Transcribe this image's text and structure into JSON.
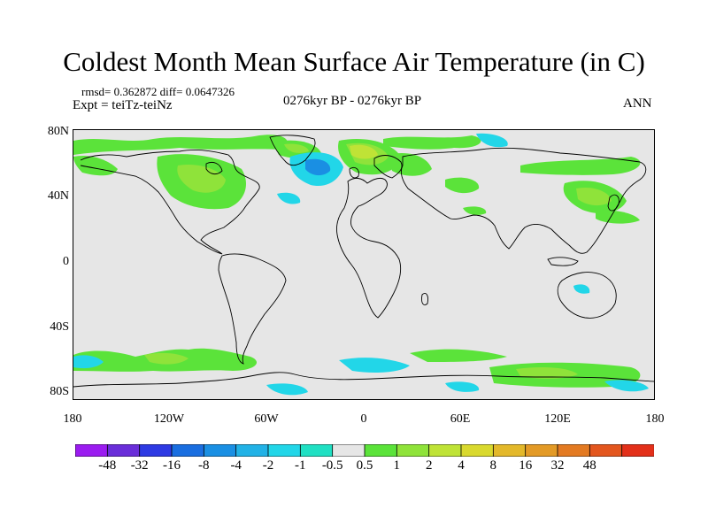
{
  "title": "Coldest Month Mean Surface Air Temperature (in C)",
  "stats": "rmsd= 0.362872 diff= 0.0647326",
  "experiment": "Expt = teiTz-teiNz",
  "period": "0276kyr BP - 0276kyr BP",
  "season": "ANN",
  "map": {
    "projection": "cylindrical equidistant",
    "lat_labels": [
      "80N",
      "40N",
      "0",
      "40S",
      "80S"
    ],
    "lon_labels": [
      "180",
      "120W",
      "60W",
      "0",
      "60E",
      "120E",
      "180"
    ],
    "background_color": "#e6e6e6",
    "coastline_color": "#000000"
  },
  "colorbar": {
    "colors": [
      "#9b1cf0",
      "#6a2ed9",
      "#2e3ae3",
      "#1a6ee0",
      "#1a8fe3",
      "#22b2e6",
      "#22d6e8",
      "#20e0c3",
      "#e6e6e6",
      "#5be33a",
      "#8fe33a",
      "#bfe336",
      "#d9d92e",
      "#e3b82a",
      "#e39a26",
      "#e37a22",
      "#e3561e",
      "#e3301a"
    ],
    "labels": [
      "-48",
      "-32",
      "-16",
      "-8",
      "-4",
      "-2",
      "-1",
      "-0.5",
      "0.5",
      "1",
      "2",
      "4",
      "8",
      "16",
      "32",
      "48"
    ]
  }
}
